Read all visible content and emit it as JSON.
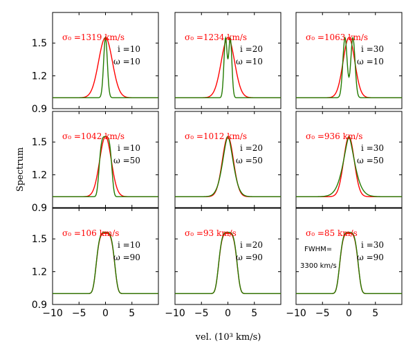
{
  "chart_data": {
    "type": "line",
    "ylabel": "Spectrum",
    "xlabel": "vel. (10³  km/s)",
    "xlim": [
      -10,
      10
    ],
    "ylim": [
      0.9,
      1.78
    ],
    "xticks": [
      -10,
      -5,
      0,
      5
    ],
    "xtick_labels": [
      "−10",
      "−5",
      "0",
      "5"
    ],
    "yticks": [
      0.9,
      1.2,
      1.5
    ],
    "ytick_labels": [
      "0.9",
      "1.2",
      "1.5"
    ],
    "series_colors": {
      "red": "#ff0000",
      "green": "#227a00"
    },
    "note_lines": [
      "FWHM=",
      "3300 km/s"
    ],
    "panels": [
      {
        "sigma_label": "σ₀ =1319 km/s",
        "i_label": "i =10",
        "omega_label": "ω =10",
        "red": {
          "peak": 1.55,
          "width": 1.3,
          "shape": "gauss"
        },
        "green": {
          "peak": 1.55,
          "width": 0.35,
          "shape": "gauss"
        }
      },
      {
        "sigma_label": "σ₀ =1234 km/s",
        "i_label": "i =20",
        "omega_label": "ω =10",
        "red": {
          "peak": 1.55,
          "width": 1.25,
          "shape": "gauss"
        },
        "green": {
          "peak": 1.55,
          "dip": 1.43,
          "sep": 0.45,
          "width": 0.3,
          "shape": "double"
        }
      },
      {
        "sigma_label": "σ₀ =1063 km/s",
        "i_label": "i =30",
        "omega_label": "ω =10",
        "red": {
          "peak": 1.55,
          "width": 1.1,
          "shape": "gauss"
        },
        "green": {
          "peak": 1.55,
          "dip": 1.42,
          "sep": 0.75,
          "width": 0.4,
          "shape": "double"
        }
      },
      {
        "sigma_label": "σ₀ =1042 km/s",
        "i_label": "i =10",
        "omega_label": "ω =50",
        "red": {
          "peak": 1.55,
          "width": 1.1,
          "shape": "gauss"
        },
        "green": {
          "peak": 1.55,
          "width": 1.1,
          "shape": "flat",
          "p": 4
        }
      },
      {
        "sigma_label": "σ₀ =1012 km/s",
        "i_label": "i =20",
        "omega_label": "ω =50",
        "red": {
          "peak": 1.55,
          "width": 1.05,
          "shape": "gauss"
        },
        "green": {
          "peak": 1.55,
          "width": 0.95,
          "shape": "flat",
          "p": 1.7
        }
      },
      {
        "sigma_label": "σ₀ =936 km/s",
        "i_label": "i =30",
        "omega_label": "ω =50",
        "red": {
          "peak": 1.55,
          "width": 1.0,
          "shape": "gauss"
        },
        "green": {
          "peak": 1.55,
          "width": 1.0,
          "shape": "flat",
          "p": 1.5
        }
      },
      {
        "sigma_label": "σ₀ =106 km/s",
        "i_label": "i =10",
        "omega_label": "ω =90",
        "red": {
          "peak": 1.55,
          "width": 1.6,
          "shape": "flat",
          "p": 4
        },
        "green": {
          "peak": 1.56,
          "width": 1.6,
          "shape": "flat",
          "p": 4
        }
      },
      {
        "sigma_label": "σ₀ =93 km/s",
        "i_label": "i =20",
        "omega_label": "ω =90",
        "red": {
          "peak": 1.55,
          "width": 1.6,
          "shape": "flat",
          "p": 4
        },
        "green": {
          "peak": 1.56,
          "width": 1.6,
          "shape": "flat",
          "p": 4
        }
      },
      {
        "sigma_label": "σ₀ =85 km/s",
        "i_label": "i =30",
        "omega_label": "ω =90",
        "red": {
          "peak": 1.55,
          "width": 1.6,
          "shape": "flat",
          "p": 4
        },
        "green": {
          "peak": 1.56,
          "width": 1.6,
          "shape": "flat",
          "p": 4
        }
      }
    ]
  }
}
